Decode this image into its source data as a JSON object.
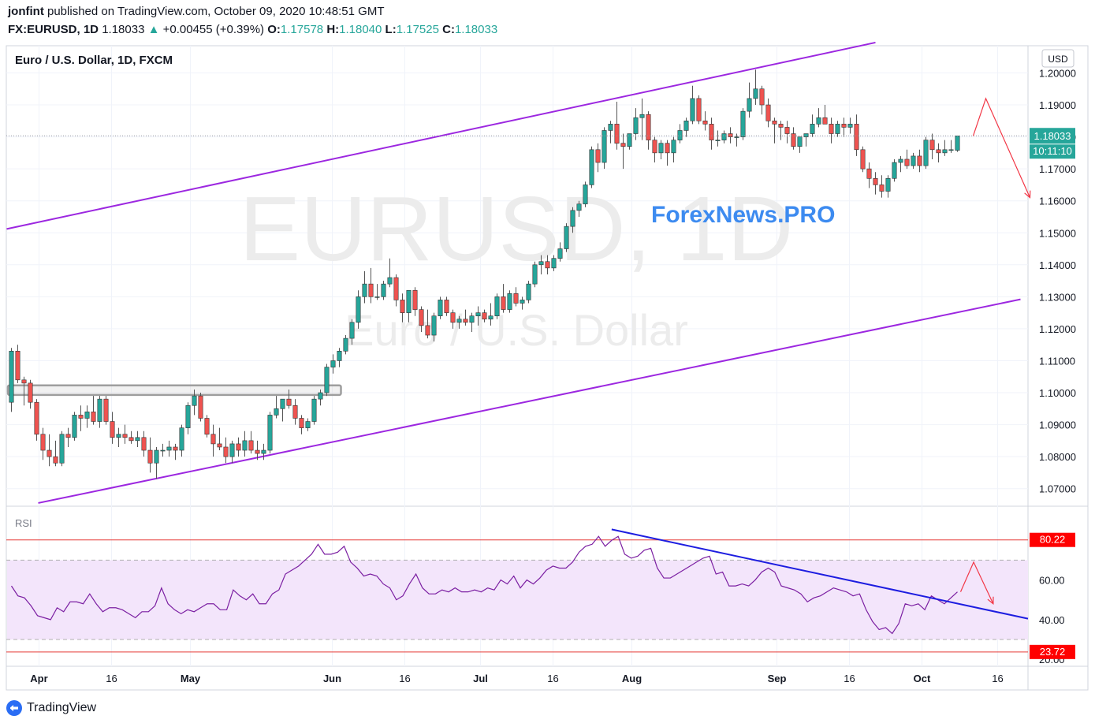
{
  "header": {
    "author": "jonfint",
    "published": " published on TradingView.com, October 09, 2020 10:48:51 GMT",
    "symbol": "FX:EURUSD, 1D",
    "last": "1.18033",
    "arrow": "▲",
    "change": "+0.00455 (+0.39%)",
    "o_label": "O:",
    "o": "1.17578",
    "h_label": "H:",
    "h": "1.18040",
    "l_label": "L:",
    "l": "1.17525",
    "c_label": "C:",
    "c": "1.18033"
  },
  "pane_title": "Euro / U.S. Dollar, 1D, FXCM",
  "watermark": {
    "big": "EURUSD, 1D",
    "small": "Euro / U.S. Dollar"
  },
  "brand_overlay": "ForexNews.PRO",
  "currency_button": "USD",
  "price_badge": {
    "value": "1.18033",
    "countdown": "10:11:10"
  },
  "rsi_label": "RSI",
  "rsi_badges": {
    "high": "80.22",
    "low": "23.72"
  },
  "footer": {
    "brand": "TradingView"
  },
  "colors": {
    "bull": "#26a69a",
    "bear": "#ef5350",
    "channel": "#9c27e0",
    "trend": "#1d1de0",
    "arrow": "#f23645",
    "rsi_line": "#7b1fa2",
    "rsi_band": "#f3e5fb",
    "brand": "#3d8bf0"
  },
  "chart_data": [
    {
      "type": "candlestick",
      "x_axis_ticks": [
        "Apr",
        "16",
        "May",
        "Jun",
        "16",
        "Jul",
        "16",
        "Aug",
        "Sep",
        "16",
        "Oct",
        "16"
      ],
      "y_axis_ticks": [
        "1.20000",
        "1.19000",
        "1.18000",
        "1.17000",
        "1.16000",
        "1.15000",
        "1.14000",
        "1.13000",
        "1.12000",
        "1.11000",
        "1.10000",
        "1.09000",
        "1.08000",
        "1.07000"
      ],
      "ylim": [
        1.0645,
        1.2085
      ],
      "candles": [
        [
          1.097,
          1.114,
          1.094,
          1.113
        ],
        [
          1.113,
          1.115,
          1.103,
          1.104
        ],
        [
          1.104,
          1.105,
          1.096,
          1.103
        ],
        [
          1.103,
          1.104,
          1.095,
          1.097
        ],
        [
          1.097,
          1.098,
          1.085,
          1.087
        ],
        [
          1.087,
          1.089,
          1.079,
          1.082
        ],
        [
          1.082,
          1.087,
          1.077,
          1.08
        ],
        [
          1.08,
          1.085,
          1.077,
          1.078
        ],
        [
          1.078,
          1.088,
          1.077,
          1.087
        ],
        [
          1.087,
          1.089,
          1.083,
          1.086
        ],
        [
          1.086,
          1.094,
          1.085,
          1.093
        ],
        [
          1.093,
          1.096,
          1.088,
          1.092
        ],
        [
          1.092,
          1.096,
          1.089,
          1.094
        ],
        [
          1.094,
          1.099,
          1.09,
          1.091
        ],
        [
          1.091,
          1.099,
          1.089,
          1.098
        ],
        [
          1.098,
          1.099,
          1.09,
          1.091
        ],
        [
          1.091,
          1.094,
          1.084,
          1.086
        ],
        [
          1.086,
          1.089,
          1.083,
          1.087
        ],
        [
          1.087,
          1.09,
          1.084,
          1.086
        ],
        [
          1.086,
          1.088,
          1.084,
          1.085
        ],
        [
          1.085,
          1.088,
          1.083,
          1.086
        ],
        [
          1.086,
          1.088,
          1.08,
          1.082
        ],
        [
          1.082,
          1.086,
          1.075,
          1.078
        ],
        [
          1.078,
          1.083,
          1.073,
          1.082
        ],
        [
          1.082,
          1.084,
          1.08,
          1.082
        ],
        [
          1.082,
          1.085,
          1.08,
          1.083
        ],
        [
          1.083,
          1.084,
          1.079,
          1.082
        ],
        [
          1.082,
          1.09,
          1.08,
          1.089
        ],
        [
          1.089,
          1.097,
          1.087,
          1.096
        ],
        [
          1.096,
          1.101,
          1.093,
          1.099
        ],
        [
          1.099,
          1.1,
          1.091,
          1.092
        ],
        [
          1.092,
          1.093,
          1.086,
          1.087
        ],
        [
          1.087,
          1.09,
          1.08,
          1.084
        ],
        [
          1.084,
          1.089,
          1.082,
          1.083
        ],
        [
          1.083,
          1.086,
          1.078,
          1.08
        ],
        [
          1.08,
          1.085,
          1.078,
          1.084
        ],
        [
          1.084,
          1.086,
          1.08,
          1.082
        ],
        [
          1.082,
          1.088,
          1.08,
          1.085
        ],
        [
          1.085,
          1.088,
          1.081,
          1.082
        ],
        [
          1.082,
          1.085,
          1.079,
          1.081
        ],
        [
          1.081,
          1.084,
          1.079,
          1.082
        ],
        [
          1.082,
          1.094,
          1.081,
          1.093
        ],
        [
          1.093,
          1.099,
          1.092,
          1.095
        ],
        [
          1.095,
          1.098,
          1.091,
          1.098
        ],
        [
          1.098,
          1.101,
          1.095,
          1.096
        ],
        [
          1.096,
          1.098,
          1.09,
          1.092
        ],
        [
          1.092,
          1.093,
          1.087,
          1.089
        ],
        [
          1.089,
          1.092,
          1.088,
          1.091
        ],
        [
          1.091,
          1.099,
          1.09,
          1.098
        ],
        [
          1.098,
          1.101,
          1.096,
          1.1
        ],
        [
          1.1,
          1.109,
          1.099,
          1.108
        ],
        [
          1.108,
          1.112,
          1.106,
          1.11
        ],
        [
          1.11,
          1.114,
          1.108,
          1.113
        ],
        [
          1.113,
          1.118,
          1.112,
          1.117
        ],
        [
          1.117,
          1.123,
          1.115,
          1.122
        ],
        [
          1.122,
          1.132,
          1.12,
          1.13
        ],
        [
          1.13,
          1.138,
          1.128,
          1.134
        ],
        [
          1.134,
          1.139,
          1.128,
          1.13
        ],
        [
          1.13,
          1.134,
          1.129,
          1.13
        ],
        [
          1.13,
          1.135,
          1.129,
          1.134
        ],
        [
          1.134,
          1.142,
          1.133,
          1.136
        ],
        [
          1.136,
          1.137,
          1.127,
          1.129
        ],
        [
          1.129,
          1.131,
          1.122,
          1.125
        ],
        [
          1.125,
          1.131,
          1.122,
          1.132
        ],
        [
          1.132,
          1.133,
          1.124,
          1.126
        ],
        [
          1.126,
          1.127,
          1.119,
          1.121
        ],
        [
          1.121,
          1.126,
          1.117,
          1.118
        ],
        [
          1.118,
          1.125,
          1.116,
          1.124
        ],
        [
          1.124,
          1.13,
          1.123,
          1.129
        ],
        [
          1.129,
          1.13,
          1.124,
          1.125
        ],
        [
          1.125,
          1.126,
          1.12,
          1.122
        ],
        [
          1.122,
          1.124,
          1.12,
          1.123
        ],
        [
          1.123,
          1.126,
          1.121,
          1.122
        ],
        [
          1.122,
          1.125,
          1.119,
          1.124
        ],
        [
          1.124,
          1.127,
          1.121,
          1.125
        ],
        [
          1.125,
          1.126,
          1.122,
          1.123
        ],
        [
          1.123,
          1.128,
          1.121,
          1.124
        ],
        [
          1.124,
          1.131,
          1.123,
          1.13
        ],
        [
          1.13,
          1.134,
          1.125,
          1.126
        ],
        [
          1.126,
          1.132,
          1.125,
          1.131
        ],
        [
          1.131,
          1.133,
          1.127,
          1.128
        ],
        [
          1.128,
          1.13,
          1.126,
          1.129
        ],
        [
          1.129,
          1.135,
          1.128,
          1.134
        ],
        [
          1.134,
          1.141,
          1.133,
          1.14
        ],
        [
          1.14,
          1.143,
          1.137,
          1.141
        ],
        [
          1.141,
          1.143,
          1.137,
          1.139
        ],
        [
          1.139,
          1.143,
          1.138,
          1.142
        ],
        [
          1.142,
          1.147,
          1.141,
          1.145
        ],
        [
          1.145,
          1.153,
          1.144,
          1.152
        ],
        [
          1.152,
          1.158,
          1.15,
          1.157
        ],
        [
          1.157,
          1.16,
          1.155,
          1.159
        ],
        [
          1.159,
          1.166,
          1.158,
          1.165
        ],
        [
          1.165,
          1.177,
          1.164,
          1.176
        ],
        [
          1.176,
          1.178,
          1.169,
          1.172
        ],
        [
          1.172,
          1.183,
          1.17,
          1.182
        ],
        [
          1.182,
          1.185,
          1.178,
          1.184
        ],
        [
          1.184,
          1.191,
          1.176,
          1.178
        ],
        [
          1.178,
          1.181,
          1.17,
          1.177
        ],
        [
          1.177,
          1.181,
          1.176,
          1.181
        ],
        [
          1.181,
          1.189,
          1.179,
          1.186
        ],
        [
          1.186,
          1.192,
          1.179,
          1.187
        ],
        [
          1.187,
          1.188,
          1.176,
          1.179
        ],
        [
          1.179,
          1.18,
          1.172,
          1.175
        ],
        [
          1.175,
          1.179,
          1.173,
          1.178
        ],
        [
          1.178,
          1.179,
          1.171,
          1.175
        ],
        [
          1.175,
          1.18,
          1.172,
          1.179
        ],
        [
          1.179,
          1.184,
          1.178,
          1.182
        ],
        [
          1.182,
          1.186,
          1.18,
          1.185
        ],
        [
          1.185,
          1.196,
          1.184,
          1.192
        ],
        [
          1.192,
          1.193,
          1.184,
          1.185
        ],
        [
          1.185,
          1.188,
          1.182,
          1.184
        ],
        [
          1.184,
          1.186,
          1.176,
          1.179
        ],
        [
          1.179,
          1.182,
          1.177,
          1.179
        ],
        [
          1.179,
          1.182,
          1.178,
          1.181
        ],
        [
          1.181,
          1.183,
          1.178,
          1.18
        ],
        [
          1.18,
          1.181,
          1.177,
          1.18
        ],
        [
          1.18,
          1.189,
          1.179,
          1.188
        ],
        [
          1.188,
          1.197,
          1.186,
          1.192
        ],
        [
          1.192,
          1.201,
          1.19,
          1.195
        ],
        [
          1.195,
          1.196,
          1.187,
          1.19
        ],
        [
          1.19,
          1.192,
          1.183,
          1.185
        ],
        [
          1.185,
          1.186,
          1.178,
          1.184
        ],
        [
          1.184,
          1.185,
          1.179,
          1.183
        ],
        [
          1.183,
          1.185,
          1.178,
          1.181
        ],
        [
          1.181,
          1.183,
          1.176,
          1.177
        ],
        [
          1.177,
          1.18,
          1.175,
          1.18
        ],
        [
          1.18,
          1.181,
          1.177,
          1.181
        ],
        [
          1.181,
          1.187,
          1.18,
          1.184
        ],
        [
          1.184,
          1.189,
          1.183,
          1.186
        ],
        [
          1.186,
          1.19,
          1.184,
          1.184
        ],
        [
          1.184,
          1.186,
          1.178,
          1.181
        ],
        [
          1.181,
          1.185,
          1.18,
          1.184
        ],
        [
          1.184,
          1.186,
          1.18,
          1.183
        ],
        [
          1.183,
          1.186,
          1.181,
          1.184
        ],
        [
          1.184,
          1.187,
          1.174,
          1.176
        ],
        [
          1.176,
          1.177,
          1.169,
          1.17
        ],
        [
          1.17,
          1.172,
          1.164,
          1.167
        ],
        [
          1.167,
          1.169,
          1.162,
          1.165
        ],
        [
          1.165,
          1.168,
          1.161,
          1.163
        ],
        [
          1.163,
          1.168,
          1.161,
          1.167
        ],
        [
          1.167,
          1.173,
          1.166,
          1.172
        ],
        [
          1.172,
          1.174,
          1.169,
          1.173
        ],
        [
          1.173,
          1.176,
          1.17,
          1.171
        ],
        [
          1.171,
          1.175,
          1.17,
          1.174
        ],
        [
          1.174,
          1.176,
          1.169,
          1.171
        ],
        [
          1.171,
          1.18,
          1.17,
          1.179
        ],
        [
          1.179,
          1.181,
          1.173,
          1.176
        ],
        [
          1.176,
          1.178,
          1.172,
          1.175
        ],
        [
          1.175,
          1.179,
          1.174,
          1.176
        ],
        [
          1.176,
          1.179,
          1.175,
          1.176
        ],
        [
          1.1758,
          1.1804,
          1.1753,
          1.1803
        ]
      ],
      "last_price": 1.18033,
      "channel_upper": {
        "from": [
          0,
          1.1512
        ],
        "to": [
          137,
          1.2095
        ]
      },
      "channel_lower": {
        "from": [
          5,
          1.0655
        ],
        "to": [
          160,
          1.1292
        ]
      },
      "support_box": {
        "from_index": 0,
        "to_index": 52,
        "top": 1.1023,
        "bottom": 1.0993
      },
      "projection_arrow": [
        [
          152,
          1.1803
        ],
        [
          154,
          1.192
        ],
        [
          161,
          1.161
        ]
      ]
    },
    {
      "type": "line",
      "name": "RSI",
      "y_axis_ticks": [
        "60.00",
        "40.00",
        "20.00"
      ],
      "ylim": [
        16.5,
        96
      ],
      "levels": {
        "high": 80.22,
        "low": 23.72,
        "band_top": 70,
        "band_bottom": 30
      },
      "values": [
        57,
        52,
        51,
        47,
        42,
        41,
        40,
        46,
        44,
        49,
        49,
        48,
        53,
        48,
        44,
        46,
        46,
        45,
        43,
        41,
        44,
        44,
        47,
        56,
        48,
        45,
        43,
        45,
        44,
        46,
        48,
        48,
        45,
        45,
        55,
        52,
        50,
        53,
        48,
        48,
        53,
        55,
        63,
        65,
        67,
        70,
        73,
        78,
        73,
        73,
        74,
        77,
        69,
        66,
        62,
        63,
        62,
        58,
        56,
        50,
        52,
        58,
        63,
        56,
        53,
        53,
        55,
        54,
        56,
        54,
        54,
        55,
        54,
        56,
        55,
        60,
        58,
        62,
        56,
        60,
        58,
        61,
        65,
        67,
        66,
        66,
        69,
        74,
        77,
        78,
        82,
        77,
        80,
        82,
        73,
        71,
        72,
        75,
        76,
        66,
        61,
        61,
        63,
        65,
        67,
        69,
        71,
        72,
        63,
        64,
        57,
        57,
        58,
        57,
        60,
        64,
        66,
        64,
        57,
        56,
        55,
        53,
        49,
        51,
        52,
        54,
        56,
        55,
        54,
        52,
        53,
        45,
        39,
        35,
        36,
        33,
        38,
        48,
        47,
        48,
        45,
        52,
        50,
        48,
        51,
        54
      ],
      "trendline": {
        "from": [
          92,
          85.5
        ],
        "to": [
          170,
          40.5
        ]
      },
      "projection_arrow": [
        [
          145,
          54
        ],
        [
          147,
          69
        ],
        [
          150,
          48
        ]
      ],
      "x_offset": 0
    }
  ]
}
